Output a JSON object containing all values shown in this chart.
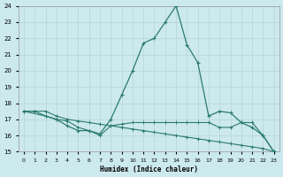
{
  "xlabel": "Humidex (Indice chaleur)",
  "background_color": "#cce9ee",
  "grid_color": "#b8d8de",
  "line_color": "#2b7b6f",
  "xlim": [
    -0.5,
    23.5
  ],
  "ylim": [
    15,
    24
  ],
  "yticks": [
    15,
    16,
    17,
    18,
    19,
    20,
    21,
    22,
    23,
    24
  ],
  "xticks": [
    0,
    1,
    2,
    3,
    4,
    5,
    6,
    7,
    8,
    9,
    10,
    11,
    12,
    13,
    14,
    15,
    16,
    17,
    18,
    19,
    20,
    21,
    22,
    23
  ],
  "line1_x": [
    0,
    1,
    2,
    3,
    4,
    5,
    6,
    7,
    8,
    9,
    10,
    11,
    12,
    13,
    14,
    15,
    16,
    17,
    18,
    19,
    20,
    21,
    22,
    23
  ],
  "line1_y": [
    17.5,
    17.5,
    17.2,
    17.0,
    16.6,
    16.3,
    16.3,
    16.1,
    17.0,
    18.5,
    20.0,
    21.7,
    22.0,
    23.0,
    24.0,
    21.6,
    20.5,
    17.2,
    17.5,
    17.4,
    16.8,
    16.5,
    16.0,
    15.0
  ],
  "line2_x": [
    0,
    2,
    3,
    4,
    5,
    6,
    7,
    8,
    9,
    10,
    11,
    12,
    13,
    14,
    15,
    16,
    17,
    18,
    19,
    20,
    21,
    22,
    23
  ],
  "line2_y": [
    17.5,
    17.2,
    17.0,
    16.9,
    16.5,
    16.3,
    16.0,
    16.6,
    16.7,
    16.8,
    16.8,
    16.8,
    16.8,
    16.8,
    16.8,
    16.8,
    16.8,
    16.5,
    16.5,
    16.8,
    16.8,
    16.0,
    15.0
  ],
  "line3_x": [
    0,
    1,
    2,
    3,
    4,
    5,
    6,
    7,
    8,
    9,
    10,
    11,
    12,
    13,
    14,
    15,
    16,
    17,
    18,
    19,
    20,
    21,
    22,
    23
  ],
  "line3_y": [
    17.5,
    17.5,
    17.5,
    17.2,
    17.0,
    16.9,
    16.8,
    16.7,
    16.6,
    16.5,
    16.4,
    16.3,
    16.2,
    16.1,
    16.0,
    15.9,
    15.8,
    15.7,
    15.6,
    15.5,
    15.4,
    15.3,
    15.2,
    15.0
  ]
}
